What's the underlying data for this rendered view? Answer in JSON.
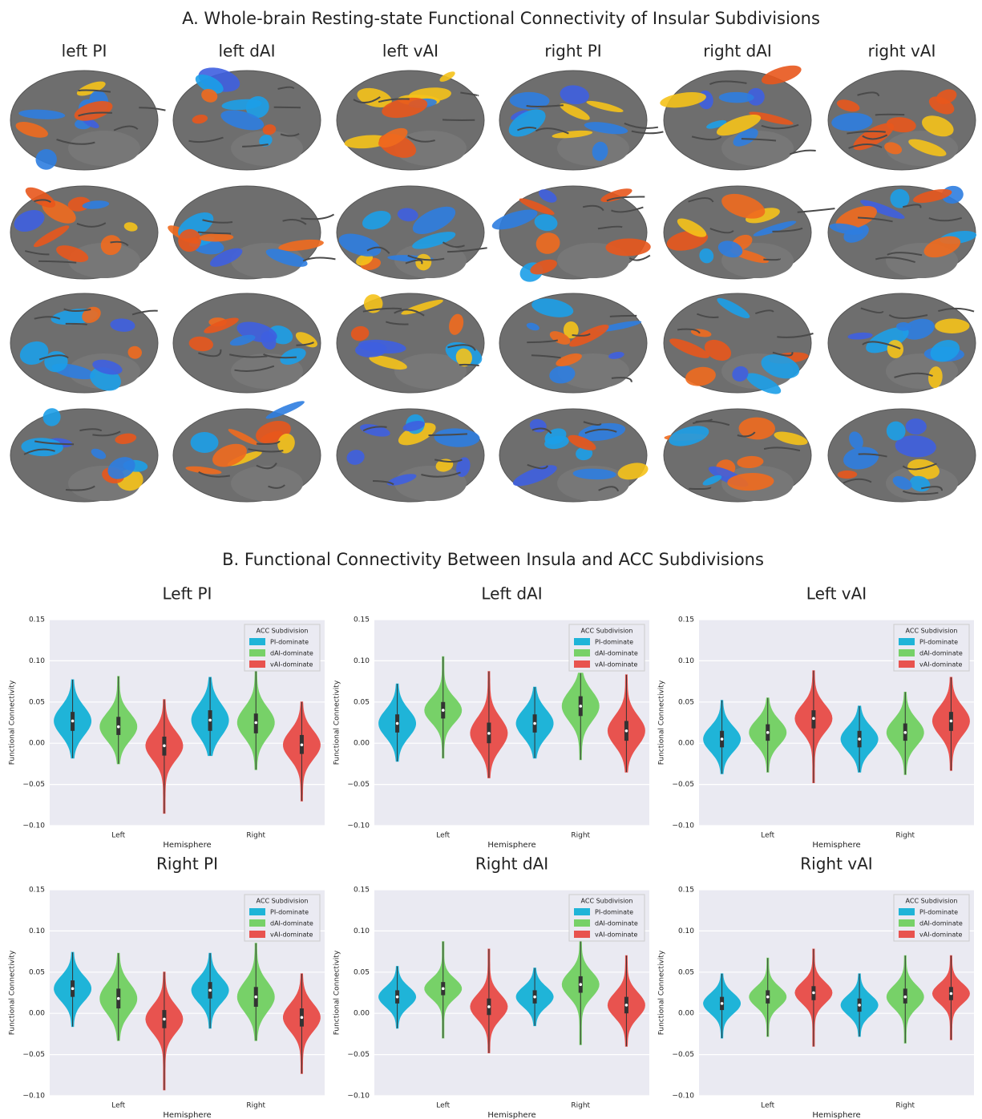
{
  "figure_a": {
    "title": "A. Whole-brain Resting-state Functional Connectivity of Insular Subdivisions",
    "columns": [
      "left PI",
      "left dAI",
      "left vAI",
      "right PI",
      "right dAI",
      "right vAI"
    ]
  },
  "figure_b_title": "B. Functional Connectivity Between Insula and ACC Subdivisions",
  "chart_data": [
    {
      "type": "violin",
      "title": "Left PI",
      "xlabel": "Hemisphere",
      "ylabel": "Functional Connectivity",
      "categories": [
        "Left",
        "Right"
      ],
      "legend_title": "ACC Subdivision",
      "legend": "upper right",
      "grid": true,
      "ylim": [
        -0.1,
        0.15
      ],
      "yticks": [
        {
          "value": -0.1,
          "label": "−0.10"
        },
        {
          "value": -0.05,
          "label": "−0.05"
        },
        {
          "value": 0,
          "label": "0.00"
        },
        0.05,
        {
          "value": 0.1,
          "label": "0.10"
        },
        0.15
      ],
      "series": [
        {
          "name": "PI-dominate",
          "color": "#1fb4d8",
          "values": [
            0.027,
            0.028
          ],
          "min": [
            -0.018,
            -0.015
          ],
          "max": [
            0.077,
            0.08
          ],
          "q1": [
            0.015,
            0.015
          ],
          "q3": [
            0.038,
            0.04
          ]
        },
        {
          "name": "dAI-dominate",
          "color": "#77d168",
          "values": [
            0.02,
            0.025
          ],
          "min": [
            -0.025,
            -0.032
          ],
          "max": [
            0.081,
            0.09
          ],
          "q1": [
            0.01,
            0.012
          ],
          "q3": [
            0.032,
            0.036
          ]
        },
        {
          "name": "vAI-dominate",
          "color": "#e8534f",
          "values": [
            -0.003,
            -0.002
          ],
          "min": [
            -0.085,
            -0.07
          ],
          "max": [
            0.053,
            0.05
          ],
          "q1": [
            -0.015,
            -0.013
          ],
          "q3": [
            0.008,
            0.01
          ]
        }
      ]
    },
    {
      "type": "violin",
      "title": "Left dAI",
      "xlabel": "Hemisphere",
      "ylabel": "Functional Connectivity",
      "categories": [
        "Left",
        "Right"
      ],
      "legend_title": "ACC Subdivision",
      "legend": "upper right",
      "grid": true,
      "ylim": [
        -0.1,
        0.15
      ],
      "yticks": [
        {
          "value": -0.1,
          "label": "−0.10"
        },
        {
          "value": -0.05,
          "label": "−0.05"
        },
        {
          "value": 0,
          "label": "0.00"
        },
        0.05,
        {
          "value": 0.1,
          "label": "0.10"
        },
        0.15
      ],
      "series": [
        {
          "name": "PI-dominate",
          "color": "#1fb4d8",
          "values": [
            0.024,
            0.024
          ],
          "min": [
            -0.022,
            -0.018
          ],
          "max": [
            0.072,
            0.068
          ],
          "q1": [
            0.013,
            0.013
          ],
          "q3": [
            0.035,
            0.035
          ]
        },
        {
          "name": "dAI-dominate",
          "color": "#77d168",
          "values": [
            0.04,
            0.045
          ],
          "min": [
            -0.018,
            -0.02
          ],
          "max": [
            0.105,
            0.085
          ],
          "q1": [
            0.03,
            0.033
          ],
          "q3": [
            0.05,
            0.057
          ]
        },
        {
          "name": "vAI-dominate",
          "color": "#e8534f",
          "values": [
            0.012,
            0.015
          ],
          "min": [
            -0.042,
            -0.035
          ],
          "max": [
            0.087,
            0.083
          ],
          "q1": [
            0,
            0.003
          ],
          "q3": [
            0.025,
            0.027
          ]
        }
      ]
    },
    {
      "type": "violin",
      "title": "Left vAI",
      "xlabel": "Hemisphere",
      "ylabel": "Functional Connectivity",
      "categories": [
        "Left",
        "Right"
      ],
      "legend_title": "ACC Subdivision",
      "legend": "upper right",
      "grid": true,
      "ylim": [
        -0.1,
        0.15
      ],
      "yticks": [
        {
          "value": -0.1,
          "label": "−0.10"
        },
        {
          "value": -0.05,
          "label": "−0.05"
        },
        {
          "value": 0,
          "label": "0.00"
        },
        0.05,
        {
          "value": 0.1,
          "label": "0.10"
        },
        0.15
      ],
      "series": [
        {
          "name": "PI-dominate",
          "color": "#1fb4d8",
          "values": [
            0.005,
            0.005
          ],
          "min": [
            -0.037,
            -0.035
          ],
          "max": [
            0.052,
            0.045
          ],
          "q1": [
            -0.005,
            -0.005
          ],
          "q3": [
            0.015,
            0.015
          ]
        },
        {
          "name": "dAI-dominate",
          "color": "#77d168",
          "values": [
            0.013,
            0.013
          ],
          "min": [
            -0.035,
            -0.038
          ],
          "max": [
            0.055,
            0.062
          ],
          "q1": [
            0.003,
            0.003
          ],
          "q3": [
            0.023,
            0.024
          ]
        },
        {
          "name": "vAI-dominate",
          "color": "#e8534f",
          "values": [
            0.03,
            0.027
          ],
          "min": [
            -0.048,
            -0.033
          ],
          "max": [
            0.088,
            0.08
          ],
          "q1": [
            0.018,
            0.015
          ],
          "q3": [
            0.04,
            0.038
          ]
        }
      ]
    },
    {
      "type": "violin",
      "title": "Right PI",
      "xlabel": "Hemisphere",
      "ylabel": "Functional Connectivity",
      "categories": [
        "Left",
        "Right"
      ],
      "legend_title": "ACC Subdivision",
      "legend": "upper right",
      "grid": true,
      "ylim": [
        -0.1,
        0.15
      ],
      "yticks": [
        {
          "value": -0.1,
          "label": "−0.10"
        },
        {
          "value": -0.05,
          "label": "−0.05"
        },
        {
          "value": 0,
          "label": "0.00"
        },
        0.05,
        {
          "value": 0.1,
          "label": "0.10"
        },
        0.15
      ],
      "series": [
        {
          "name": "PI-dominate",
          "color": "#1fb4d8",
          "values": [
            0.03,
            0.028
          ],
          "min": [
            -0.016,
            -0.018
          ],
          "max": [
            0.074,
            0.073
          ],
          "q1": [
            0.02,
            0.018
          ],
          "q3": [
            0.04,
            0.038
          ]
        },
        {
          "name": "dAI-dominate",
          "color": "#77d168",
          "values": [
            0.018,
            0.02
          ],
          "min": [
            -0.033,
            -0.033
          ],
          "max": [
            0.073,
            0.085
          ],
          "q1": [
            0.006,
            0.008
          ],
          "q3": [
            0.03,
            0.032
          ]
        },
        {
          "name": "vAI-dominate",
          "color": "#e8534f",
          "values": [
            -0.007,
            -0.005
          ],
          "min": [
            -0.093,
            -0.073
          ],
          "max": [
            0.05,
            0.048
          ],
          "q1": [
            -0.018,
            -0.016
          ],
          "q3": [
            0.004,
            0.006
          ]
        }
      ]
    },
    {
      "type": "violin",
      "title": "Right dAI",
      "xlabel": "Hemisphere",
      "ylabel": "Functional Connectivity",
      "categories": [
        "Left",
        "Right"
      ],
      "legend_title": "ACC Subdivision",
      "legend": "upper right",
      "grid": true,
      "ylim": [
        -0.1,
        0.15
      ],
      "yticks": [
        {
          "value": -0.1,
          "label": "−0.10"
        },
        {
          "value": -0.05,
          "label": "−0.05"
        },
        {
          "value": 0,
          "label": "0.00"
        },
        0.05,
        {
          "value": 0.1,
          "label": "0.10"
        },
        0.15
      ],
      "series": [
        {
          "name": "PI-dominate",
          "color": "#1fb4d8",
          "values": [
            0.02,
            0.02
          ],
          "min": [
            -0.018,
            -0.015
          ],
          "max": [
            0.057,
            0.055
          ],
          "q1": [
            0.012,
            0.012
          ],
          "q3": [
            0.028,
            0.028
          ]
        },
        {
          "name": "dAI-dominate",
          "color": "#77d168",
          "values": [
            0.03,
            0.035
          ],
          "min": [
            -0.03,
            -0.038
          ],
          "max": [
            0.087,
            0.09
          ],
          "q1": [
            0.022,
            0.025
          ],
          "q3": [
            0.038,
            0.045
          ]
        },
        {
          "name": "vAI-dominate",
          "color": "#e8534f",
          "values": [
            0.008,
            0.01
          ],
          "min": [
            -0.048,
            -0.04
          ],
          "max": [
            0.078,
            0.07
          ],
          "q1": [
            -0.002,
            0
          ],
          "q3": [
            0.018,
            0.02
          ]
        }
      ]
    },
    {
      "type": "violin",
      "title": "Right vAI",
      "xlabel": "Hemisphere",
      "ylabel": "Functional Connectivity",
      "categories": [
        "Left",
        "Right"
      ],
      "legend_title": "ACC Subdivision",
      "legend": "upper right",
      "grid": true,
      "ylim": [
        -0.1,
        0.15
      ],
      "yticks": [
        {
          "value": -0.1,
          "label": "−0.10"
        },
        {
          "value": -0.05,
          "label": "−0.05"
        },
        {
          "value": 0,
          "label": "0.00"
        },
        0.05,
        {
          "value": 0.1,
          "label": "0.10"
        },
        0.15
      ],
      "series": [
        {
          "name": "PI-dominate",
          "color": "#1fb4d8",
          "values": [
            0.012,
            0.01
          ],
          "min": [
            -0.03,
            -0.028
          ],
          "max": [
            0.048,
            0.048
          ],
          "q1": [
            0.004,
            0.002
          ],
          "q3": [
            0.02,
            0.018
          ]
        },
        {
          "name": "dAI-dominate",
          "color": "#77d168",
          "values": [
            0.02,
            0.02
          ],
          "min": [
            -0.028,
            -0.036
          ],
          "max": [
            0.067,
            0.07
          ],
          "q1": [
            0.012,
            0.012
          ],
          "q3": [
            0.028,
            0.03
          ]
        },
        {
          "name": "vAI-dominate",
          "color": "#e8534f",
          "values": [
            0.025,
            0.024
          ],
          "min": [
            -0.04,
            -0.032
          ],
          "max": [
            0.078,
            0.07
          ],
          "q1": [
            0.016,
            0.016
          ],
          "q3": [
            0.033,
            0.032
          ]
        }
      ]
    }
  ]
}
